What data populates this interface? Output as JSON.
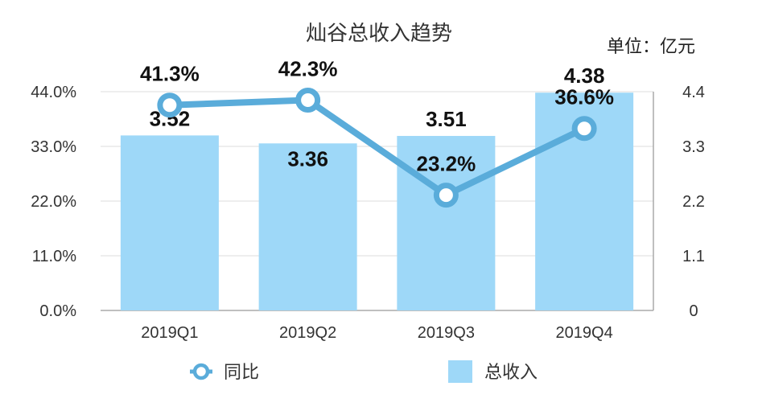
{
  "chart_data": {
    "type": "bar+line",
    "title": "灿谷总收入趋势",
    "unit_label": "单位：亿元",
    "categories": [
      "2019Q1",
      "2019Q2",
      "2019Q3",
      "2019Q4"
    ],
    "series": [
      {
        "name": "总收入",
        "type": "bar",
        "axis": "right",
        "values": [
          3.52,
          3.36,
          3.51,
          4.38
        ],
        "labels": [
          "3.52",
          "3.36",
          "3.51",
          "4.38"
        ],
        "color": "#9ED8F8"
      },
      {
        "name": "同比",
        "type": "line",
        "axis": "left",
        "values": [
          41.3,
          42.3,
          23.2,
          36.6
        ],
        "labels": [
          "41.3%",
          "42.3%",
          "23.2%",
          "36.6%"
        ],
        "color": "#5AACDA"
      }
    ],
    "left_axis": {
      "ylim": [
        0,
        44
      ],
      "ticks": [
        "0.0%",
        "11.0%",
        "22.0%",
        "33.0%",
        "44.0%"
      ],
      "tick_values": [
        0,
        11,
        22,
        33,
        44
      ]
    },
    "right_axis": {
      "ylim": [
        0,
        4.4
      ],
      "ticks": [
        "0",
        "1.1",
        "2.2",
        "3.3",
        "4.4"
      ],
      "tick_values": [
        0,
        1.1,
        2.2,
        3.3,
        4.4
      ]
    },
    "grid": true,
    "legend_position": "bottom"
  }
}
